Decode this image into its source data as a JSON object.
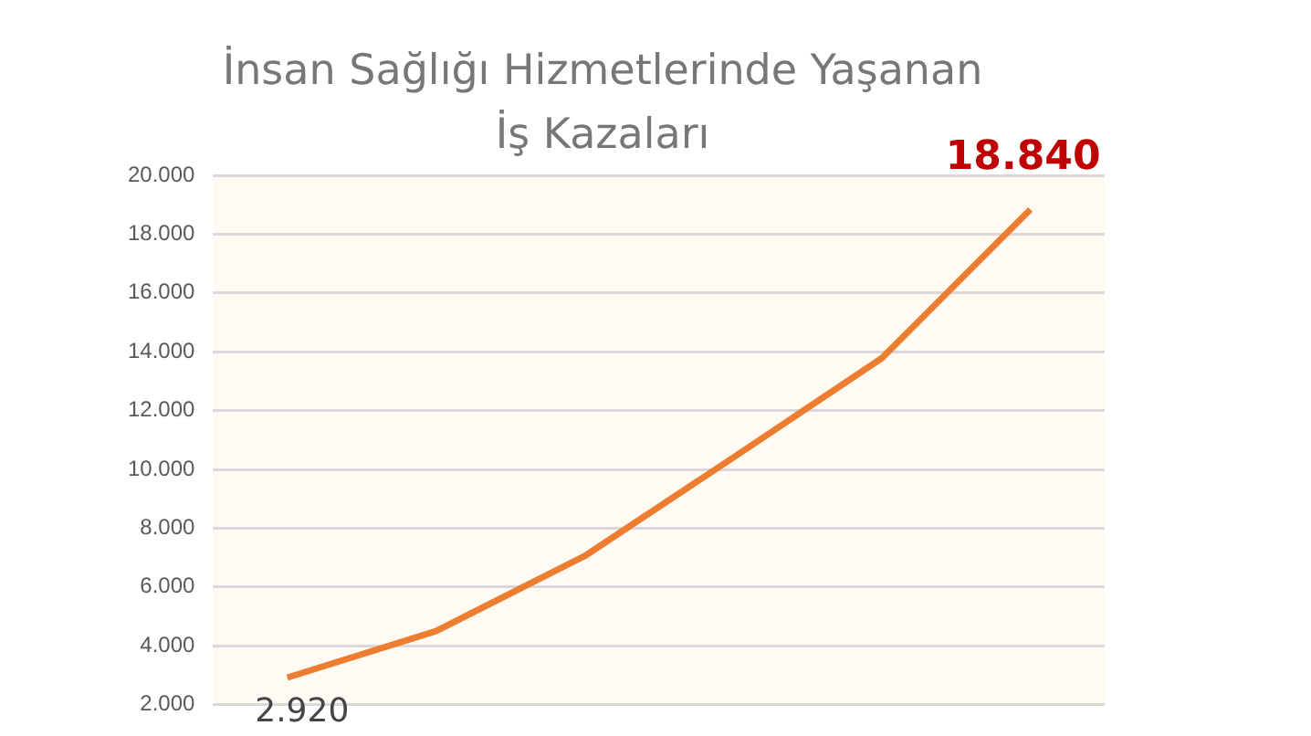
{
  "chart_data": {
    "type": "line",
    "title": "İnsan Sağlığı Hizmetlerinde Yaşanan\nİş Kazaları",
    "categories": [
      null,
      null,
      null,
      null,
      null,
      null
    ],
    "series": [
      {
        "color": "#ed7d31",
        "values": [
          2920,
          4500,
          7050,
          10400,
          13780,
          18840
        ],
        "value_labels": [
          "2.920",
          null,
          null,
          null,
          null,
          "18.840"
        ]
      }
    ],
    "ylim": [
      2000,
      20000
    ],
    "yticks": [
      {
        "value": 2000,
        "label": "2.000"
      },
      {
        "value": 4000,
        "label": "4.000"
      },
      {
        "value": 6000,
        "label": "6.000"
      },
      {
        "value": 8000,
        "label": "8.000"
      },
      {
        "value": 10000,
        "label": "10.000"
      },
      {
        "value": 12000,
        "label": "12.000"
      },
      {
        "value": 14000,
        "label": "14.000"
      },
      {
        "value": 16000,
        "label": "16.000"
      },
      {
        "value": 18000,
        "label": "18.000"
      },
      {
        "value": 20000,
        "label": "20.000"
      }
    ],
    "grid": "y",
    "legend": false,
    "tick_labels": "y"
  }
}
